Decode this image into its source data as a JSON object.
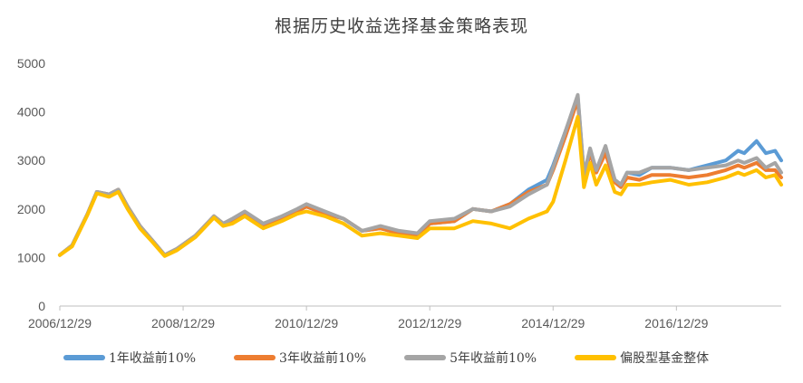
{
  "chart_data": {
    "type": "line",
    "title": "根据历史收益选择基金策略表现",
    "xlabel": "",
    "ylabel": "",
    "ylim": [
      0,
      5000
    ],
    "yticks": [
      0,
      1000,
      2000,
      3000,
      4000,
      5000
    ],
    "x_tick_labels": [
      "2006/12/29",
      "2008/12/29",
      "2010/12/29",
      "2012/12/29",
      "2014/12/29",
      "2016/12/29"
    ],
    "x_ticks": [
      2007.0,
      2009.0,
      2011.0,
      2013.0,
      2015.0,
      2017.0
    ],
    "xlim": [
      2007.0,
      2018.7
    ],
    "grid": false,
    "legend_position": "bottom",
    "series": [
      {
        "name": "1年收益前10%",
        "color": "#5B9BD5",
        "x": [
          2007.0,
          2007.2,
          2007.45,
          2007.6,
          2007.8,
          2007.95,
          2008.1,
          2008.3,
          2008.5,
          2008.7,
          2008.9,
          2009.2,
          2009.5,
          2009.65,
          2009.8,
          2010.0,
          2010.3,
          2010.6,
          2010.85,
          2011.0,
          2011.3,
          2011.6,
          2011.9,
          2012.2,
          2012.5,
          2012.8,
          2013.0,
          2013.4,
          2013.7,
          2014.0,
          2014.3,
          2014.6,
          2014.9,
          2015.0,
          2015.2,
          2015.4,
          2015.5,
          2015.6,
          2015.7,
          2015.85,
          2016.0,
          2016.1,
          2016.2,
          2016.4,
          2016.6,
          2016.9,
          2017.2,
          2017.5,
          2017.8,
          2018.0,
          2018.1,
          2018.3,
          2018.45,
          2018.6,
          2018.7
        ],
        "values": [
          1050,
          1250,
          1900,
          2350,
          2300,
          2400,
          2050,
          1650,
          1350,
          1050,
          1180,
          1450,
          1850,
          1700,
          1750,
          1900,
          1650,
          1800,
          1950,
          2050,
          1900,
          1800,
          1550,
          1600,
          1500,
          1450,
          1700,
          1750,
          2000,
          1950,
          2100,
          2400,
          2600,
          2900,
          3600,
          4300,
          2700,
          3200,
          2800,
          3250,
          2600,
          2500,
          2750,
          2700,
          2850,
          2850,
          2800,
          2900,
          3000,
          3200,
          3150,
          3400,
          3150,
          3200,
          3000
        ]
      },
      {
        "name": "3年收益前10%",
        "color": "#ED7D31",
        "x": [
          2007.0,
          2007.2,
          2007.45,
          2007.6,
          2007.8,
          2007.95,
          2008.1,
          2008.3,
          2008.5,
          2008.7,
          2008.9,
          2009.2,
          2009.5,
          2009.65,
          2009.8,
          2010.0,
          2010.3,
          2010.6,
          2010.85,
          2011.0,
          2011.3,
          2011.6,
          2011.9,
          2012.2,
          2012.5,
          2012.8,
          2013.0,
          2013.4,
          2013.7,
          2014.0,
          2014.3,
          2014.6,
          2014.9,
          2015.0,
          2015.2,
          2015.4,
          2015.5,
          2015.6,
          2015.7,
          2015.85,
          2016.0,
          2016.1,
          2016.2,
          2016.4,
          2016.6,
          2016.9,
          2017.2,
          2017.5,
          2017.8,
          2018.0,
          2018.1,
          2018.3,
          2018.45,
          2018.6,
          2018.7
        ],
        "values": [
          1050,
          1250,
          1900,
          2350,
          2300,
          2400,
          2050,
          1650,
          1350,
          1050,
          1180,
          1450,
          1850,
          1700,
          1750,
          1900,
          1650,
          1800,
          1950,
          2050,
          1900,
          1800,
          1550,
          1600,
          1500,
          1450,
          1700,
          1750,
          2000,
          1950,
          2100,
          2350,
          2500,
          2800,
          3500,
          4250,
          2650,
          3150,
          2750,
          3150,
          2550,
          2450,
          2650,
          2600,
          2700,
          2700,
          2650,
          2700,
          2800,
          2900,
          2850,
          2950,
          2800,
          2800,
          2650
        ]
      },
      {
        "name": "5年收益前10%",
        "color": "#A5A5A5",
        "x": [
          2007.0,
          2007.2,
          2007.45,
          2007.6,
          2007.8,
          2007.95,
          2008.1,
          2008.3,
          2008.5,
          2008.7,
          2008.9,
          2009.2,
          2009.5,
          2009.65,
          2009.8,
          2010.0,
          2010.3,
          2010.6,
          2010.85,
          2011.0,
          2011.3,
          2011.6,
          2011.9,
          2012.2,
          2012.5,
          2012.8,
          2013.0,
          2013.4,
          2013.7,
          2014.0,
          2014.3,
          2014.6,
          2014.9,
          2015.0,
          2015.2,
          2015.4,
          2015.5,
          2015.6,
          2015.7,
          2015.85,
          2016.0,
          2016.1,
          2016.2,
          2016.4,
          2016.6,
          2016.9,
          2017.2,
          2017.5,
          2017.8,
          2018.0,
          2018.1,
          2018.3,
          2018.45,
          2018.6,
          2018.7
        ],
        "values": [
          1050,
          1250,
          1900,
          2350,
          2300,
          2400,
          2050,
          1650,
          1350,
          1050,
          1180,
          1450,
          1850,
          1700,
          1800,
          1950,
          1700,
          1850,
          2000,
          2100,
          1950,
          1800,
          1550,
          1650,
          1550,
          1500,
          1750,
          1800,
          2000,
          1950,
          2050,
          2300,
          2500,
          2850,
          3600,
          4350,
          2700,
          3250,
          2800,
          3300,
          2600,
          2500,
          2750,
          2750,
          2850,
          2850,
          2800,
          2850,
          2900,
          3000,
          2950,
          3050,
          2850,
          2950,
          2750
        ]
      },
      {
        "name": "偏股型基金整体",
        "color": "#FFC000",
        "x": [
          2007.0,
          2007.2,
          2007.45,
          2007.6,
          2007.8,
          2007.95,
          2008.1,
          2008.3,
          2008.5,
          2008.7,
          2008.9,
          2009.2,
          2009.5,
          2009.65,
          2009.8,
          2010.0,
          2010.3,
          2010.6,
          2010.85,
          2011.0,
          2011.3,
          2011.6,
          2011.9,
          2012.2,
          2012.5,
          2012.8,
          2013.0,
          2013.4,
          2013.7,
          2014.0,
          2014.3,
          2014.6,
          2014.9,
          2015.0,
          2015.2,
          2015.4,
          2015.5,
          2015.6,
          2015.7,
          2015.85,
          2016.0,
          2016.1,
          2016.2,
          2016.4,
          2016.6,
          2016.9,
          2017.2,
          2017.5,
          2017.8,
          2018.0,
          2018.1,
          2018.3,
          2018.45,
          2018.6,
          2018.7
        ],
        "values": [
          1050,
          1230,
          1880,
          2320,
          2250,
          2350,
          2000,
          1600,
          1320,
          1030,
          1150,
          1420,
          1820,
          1650,
          1700,
          1850,
          1600,
          1750,
          1900,
          1950,
          1850,
          1700,
          1450,
          1500,
          1450,
          1400,
          1600,
          1600,
          1750,
          1700,
          1600,
          1800,
          1950,
          2150,
          3000,
          3900,
          2450,
          2950,
          2500,
          2900,
          2350,
          2300,
          2500,
          2500,
          2550,
          2600,
          2500,
          2550,
          2650,
          2750,
          2700,
          2800,
          2650,
          2700,
          2500
        ]
      }
    ]
  }
}
